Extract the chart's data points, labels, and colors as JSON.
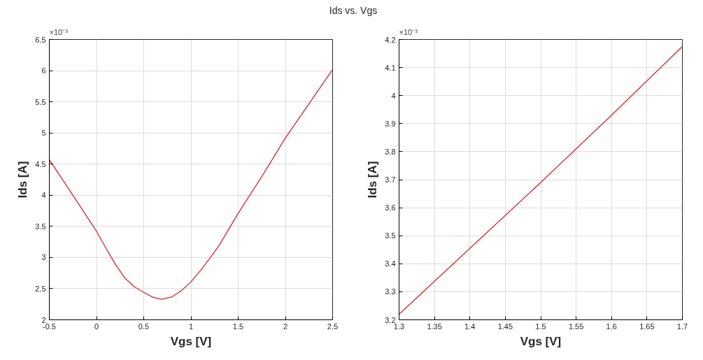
{
  "chart_data": [
    {
      "type": "line",
      "title": "Ids vs. Vgs",
      "xlabel": "Vgs [V]",
      "ylabel": "Ids [A]",
      "annotations": [
        "×10⁻³"
      ],
      "x": [
        -0.5,
        -0.25,
        0,
        0.1,
        0.2,
        0.3,
        0.4,
        0.5,
        0.6,
        0.69,
        0.8,
        0.9,
        1.0,
        1.1,
        1.2,
        1.3,
        1.5,
        1.75,
        2.0,
        2.25,
        2.5
      ],
      "series": [
        {
          "color": "#d62728",
          "values": [
            4.57,
            4.0,
            3.42,
            3.15,
            2.89,
            2.67,
            2.53,
            2.44,
            2.36,
            2.33,
            2.37,
            2.47,
            2.61,
            2.79,
            2.99,
            3.2,
            3.71,
            4.3,
            4.92,
            5.47,
            6.02
          ]
        }
      ],
      "xlim": [
        -0.5,
        2.5
      ],
      "xticks": [
        -0.5,
        0,
        0.5,
        1,
        1.5,
        2,
        2.5
      ],
      "ylim": [
        2,
        6.5
      ],
      "yticks": [
        2,
        2.5,
        3,
        3.5,
        4,
        4.5,
        5,
        5.5,
        6,
        6.5
      ],
      "grid": true
    },
    {
      "type": "line",
      "xlabel": "Vgs [V]",
      "ylabel": "Ids [A]",
      "annotations": [
        "×10⁻³"
      ],
      "x": [
        1.3,
        1.4,
        1.5,
        1.6,
        1.7
      ],
      "series": [
        {
          "color": "#d62728",
          "values": [
            3.22,
            3.455,
            3.69,
            3.93,
            4.175
          ]
        }
      ],
      "xlim": [
        1.3,
        1.7
      ],
      "xticks": [
        1.3,
        1.35,
        1.4,
        1.45,
        1.5,
        1.55,
        1.6,
        1.65,
        1.7
      ],
      "ylim": [
        3.2,
        4.2
      ],
      "yticks": [
        3.2,
        3.3,
        3.4,
        3.5,
        3.6,
        3.7,
        3.8,
        3.9,
        4,
        4.1,
        4.2
      ],
      "grid": true
    }
  ]
}
